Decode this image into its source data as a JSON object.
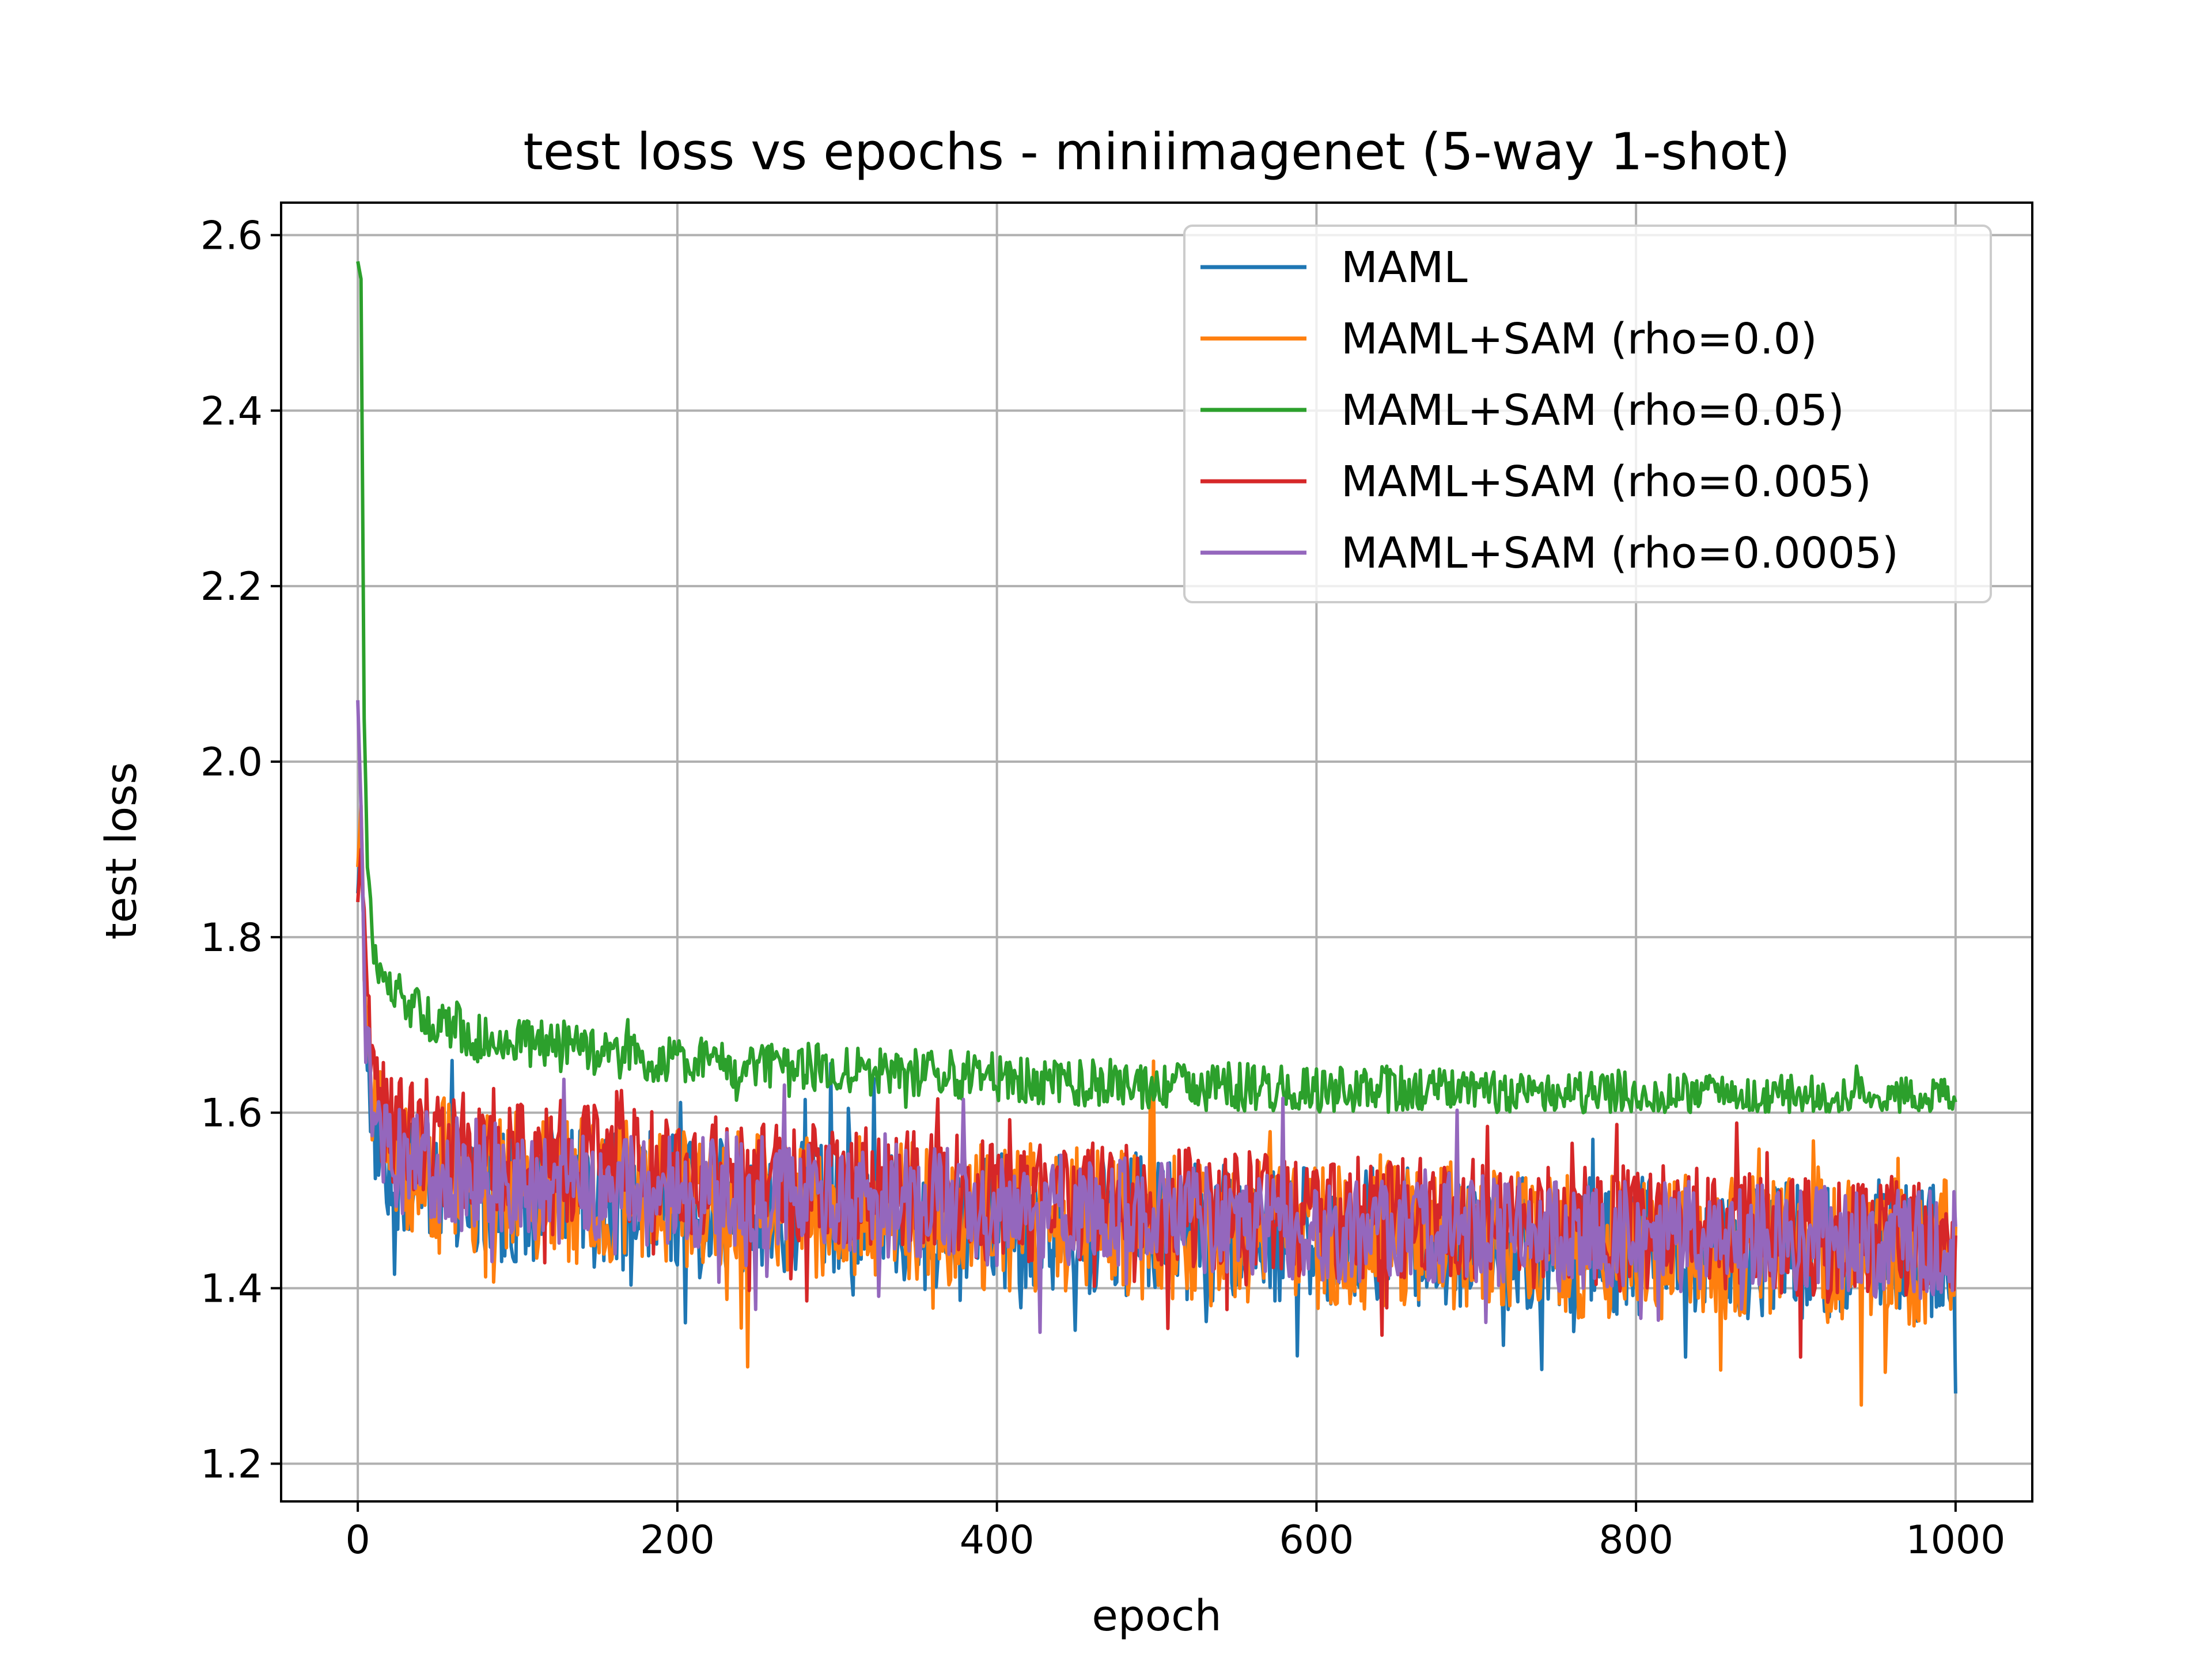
{
  "chart_data": {
    "type": "line",
    "title": "test loss vs epochs - miniimagenet (5-way 1-shot)",
    "xlabel": "epoch",
    "ylabel": "test loss",
    "xlim": [
      -48,
      1048
    ],
    "ylim": [
      1.157,
      2.637
    ],
    "xticks": [
      0,
      200,
      400,
      600,
      800,
      1000
    ],
    "yticks": [
      1.2,
      1.4,
      1.6,
      1.8,
      2.0,
      2.2,
      2.4,
      2.6
    ],
    "xtick_labels": [
      "0",
      "200",
      "400",
      "600",
      "800",
      "1000"
    ],
    "ytick_labels": [
      "1.2",
      "1.4",
      "1.6",
      "1.8",
      "2.0",
      "2.2",
      "2.4",
      "2.6"
    ],
    "grid": true,
    "legend_position": "upper right",
    "series": [
      {
        "name": "MAML",
        "color": "#1f77b4",
        "points": [
          [
            0,
            1.85
          ],
          [
            2,
            1.92
          ],
          [
            5,
            1.7
          ],
          [
            10,
            1.58
          ],
          [
            20,
            1.54
          ],
          [
            40,
            1.53
          ],
          [
            60,
            1.52
          ],
          [
            80,
            1.51
          ],
          [
            100,
            1.51
          ],
          [
            150,
            1.5
          ],
          [
            200,
            1.5
          ],
          [
            250,
            1.49
          ],
          [
            300,
            1.49
          ],
          [
            350,
            1.48
          ],
          [
            400,
            1.48
          ],
          [
            450,
            1.47
          ],
          [
            500,
            1.47
          ],
          [
            550,
            1.46
          ],
          [
            600,
            1.46
          ],
          [
            650,
            1.46
          ],
          [
            700,
            1.45
          ],
          [
            750,
            1.45
          ],
          [
            800,
            1.45
          ],
          [
            850,
            1.44
          ],
          [
            900,
            1.44
          ],
          [
            950,
            1.44
          ],
          [
            1000,
            1.44
          ]
        ],
        "noise": 0.08,
        "extreme_low": 1.22,
        "end_value": 1.28
      },
      {
        "name": "MAML+SAM (rho=0.0)",
        "color": "#ff7f0e",
        "points": [
          [
            0,
            1.88
          ],
          [
            2,
            1.95
          ],
          [
            5,
            1.72
          ],
          [
            10,
            1.6
          ],
          [
            20,
            1.55
          ],
          [
            40,
            1.54
          ],
          [
            60,
            1.53
          ],
          [
            80,
            1.52
          ],
          [
            100,
            1.52
          ],
          [
            150,
            1.51
          ],
          [
            200,
            1.5
          ],
          [
            250,
            1.5
          ],
          [
            300,
            1.49
          ],
          [
            350,
            1.49
          ],
          [
            400,
            1.48
          ],
          [
            450,
            1.48
          ],
          [
            500,
            1.47
          ],
          [
            550,
            1.47
          ],
          [
            600,
            1.46
          ],
          [
            650,
            1.46
          ],
          [
            700,
            1.46
          ],
          [
            750,
            1.45
          ],
          [
            800,
            1.45
          ],
          [
            850,
            1.45
          ],
          [
            900,
            1.44
          ],
          [
            950,
            1.44
          ],
          [
            1000,
            1.44
          ]
        ],
        "noise": 0.085,
        "extreme_low": 1.22,
        "end_value": 1.47
      },
      {
        "name": "MAML+SAM (rho=0.05)",
        "color": "#2ca02c",
        "points": [
          [
            0,
            2.57
          ],
          [
            2,
            2.55
          ],
          [
            4,
            2.05
          ],
          [
            6,
            1.88
          ],
          [
            10,
            1.78
          ],
          [
            20,
            1.74
          ],
          [
            40,
            1.71
          ],
          [
            60,
            1.7
          ],
          [
            80,
            1.68
          ],
          [
            100,
            1.68
          ],
          [
            150,
            1.67
          ],
          [
            200,
            1.66
          ],
          [
            250,
            1.655
          ],
          [
            300,
            1.65
          ],
          [
            350,
            1.645
          ],
          [
            400,
            1.64
          ],
          [
            450,
            1.635
          ],
          [
            500,
            1.63
          ],
          [
            550,
            1.63
          ],
          [
            600,
            1.625
          ],
          [
            650,
            1.625
          ],
          [
            700,
            1.62
          ],
          [
            750,
            1.62
          ],
          [
            800,
            1.618
          ],
          [
            850,
            1.615
          ],
          [
            900,
            1.615
          ],
          [
            950,
            1.613
          ],
          [
            1000,
            1.612
          ]
        ],
        "noise": 0.028,
        "extreme_low": 1.6,
        "end_value": 1.612
      },
      {
        "name": "MAML+SAM (rho=0.005)",
        "color": "#d62728",
        "points": [
          [
            0,
            1.84
          ],
          [
            2,
            1.9
          ],
          [
            5,
            1.75
          ],
          [
            10,
            1.62
          ],
          [
            20,
            1.58
          ],
          [
            40,
            1.57
          ],
          [
            60,
            1.56
          ],
          [
            80,
            1.56
          ],
          [
            100,
            1.55
          ],
          [
            150,
            1.54
          ],
          [
            200,
            1.53
          ],
          [
            250,
            1.52
          ],
          [
            300,
            1.52
          ],
          [
            350,
            1.51
          ],
          [
            400,
            1.5
          ],
          [
            450,
            1.5
          ],
          [
            500,
            1.49
          ],
          [
            550,
            1.49
          ],
          [
            600,
            1.48
          ],
          [
            650,
            1.48
          ],
          [
            700,
            1.48
          ],
          [
            750,
            1.47
          ],
          [
            800,
            1.47
          ],
          [
            850,
            1.47
          ],
          [
            900,
            1.46
          ],
          [
            950,
            1.46
          ],
          [
            1000,
            1.46
          ]
        ],
        "noise": 0.07,
        "extreme_low": 1.26,
        "end_value": 1.46
      },
      {
        "name": "MAML+SAM (rho=0.0005)",
        "color": "#9467bd",
        "points": [
          [
            0,
            2.07
          ],
          [
            2,
            1.95
          ],
          [
            5,
            1.7
          ],
          [
            10,
            1.58
          ],
          [
            20,
            1.55
          ],
          [
            40,
            1.54
          ],
          [
            60,
            1.53
          ],
          [
            80,
            1.53
          ],
          [
            100,
            1.52
          ],
          [
            150,
            1.52
          ],
          [
            200,
            1.51
          ],
          [
            250,
            1.51
          ],
          [
            300,
            1.5
          ],
          [
            350,
            1.5
          ],
          [
            400,
            1.49
          ],
          [
            450,
            1.49
          ],
          [
            500,
            1.48
          ],
          [
            550,
            1.48
          ],
          [
            600,
            1.47
          ],
          [
            650,
            1.47
          ],
          [
            700,
            1.47
          ],
          [
            750,
            1.46
          ],
          [
            800,
            1.46
          ],
          [
            850,
            1.46
          ],
          [
            900,
            1.46
          ],
          [
            950,
            1.45
          ],
          [
            1000,
            1.45
          ]
        ],
        "noise": 0.065,
        "extreme_low": 1.24,
        "end_value": 1.47
      }
    ]
  }
}
